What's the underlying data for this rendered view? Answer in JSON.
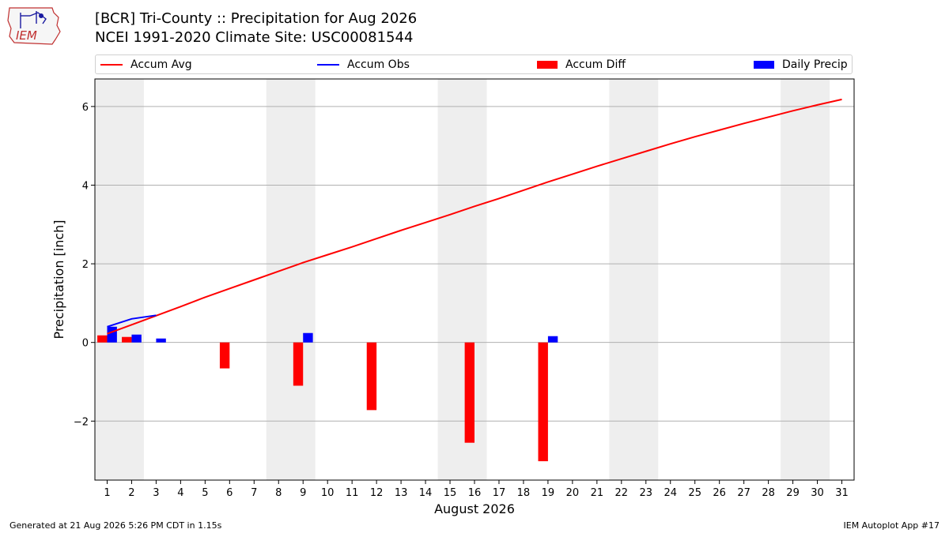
{
  "header": {
    "title_line1": "[BCR] Tri-County :: Precipitation for Aug 2026",
    "title_line2": "NCEI 1991-2020 Climate Site: USC00081544",
    "logo_text": "IEM"
  },
  "legend": {
    "accum_avg": "Accum Avg",
    "accum_obs": "Accum Obs",
    "accum_diff": "Accum Diff",
    "daily_precip": "Daily Precip"
  },
  "footer": {
    "left": "Generated at 21 Aug 2026 5:26 PM CDT in 1.15s",
    "right": "IEM Autoplot App #17"
  },
  "colors": {
    "avg": "#ff0000",
    "obs": "#0000ff",
    "diff": "#ff0000",
    "daily": "#0000ff",
    "shade": "#eeeeee",
    "grid": "#b0b0b0"
  },
  "chart_data": {
    "type": "bar",
    "title": "[BCR] Tri-County :: Precipitation for Aug 2026",
    "xlabel": "August 2026",
    "ylabel": "Precipitation [inch]",
    "xlim": [
      0.5,
      31.5
    ],
    "ylim": [
      -3.5,
      6.7
    ],
    "yticks": [
      -2,
      0,
      2,
      4,
      6
    ],
    "ytick_labels": [
      "−2",
      "0",
      "2",
      "4",
      "6"
    ],
    "x_ticks": [
      1,
      2,
      3,
      4,
      5,
      6,
      7,
      8,
      9,
      10,
      11,
      12,
      13,
      14,
      15,
      16,
      17,
      18,
      19,
      20,
      21,
      22,
      23,
      24,
      25,
      26,
      27,
      28,
      29,
      30,
      31
    ],
    "grid": "horizontal",
    "weekend_shading": [
      [
        0.5,
        2.5
      ],
      [
        7.5,
        9.5
      ],
      [
        14.5,
        16.5
      ],
      [
        21.5,
        23.5
      ],
      [
        28.5,
        30.5
      ]
    ],
    "series": [
      {
        "name": "Accum Avg",
        "kind": "line",
        "x": [
          1,
          2,
          3,
          4,
          5,
          6,
          7,
          8,
          9,
          10,
          11,
          12,
          13,
          14,
          15,
          16,
          17,
          18,
          19,
          20,
          21,
          22,
          23,
          24,
          25,
          26,
          27,
          28,
          29,
          30,
          31
        ],
        "values": [
          0.22,
          0.45,
          0.68,
          0.91,
          1.15,
          1.37,
          1.59,
          1.81,
          2.03,
          2.23,
          2.43,
          2.64,
          2.85,
          3.05,
          3.25,
          3.46,
          3.66,
          3.87,
          4.08,
          4.28,
          4.48,
          4.67,
          4.86,
          5.05,
          5.23,
          5.4,
          5.57,
          5.73,
          5.89,
          6.04,
          6.18
        ]
      },
      {
        "name": "Accum Obs",
        "kind": "line",
        "x": [
          1,
          2,
          3
        ],
        "values": [
          0.4,
          0.6,
          0.69
        ]
      },
      {
        "name": "Accum Diff",
        "kind": "bar",
        "x": [
          1,
          2,
          6,
          9,
          12,
          16,
          19
        ],
        "values": [
          0.18,
          0.14,
          -0.66,
          -1.1,
          -1.72,
          -2.55,
          -3.02
        ]
      },
      {
        "name": "Daily Precip",
        "kind": "bar",
        "x": [
          1,
          2,
          3,
          9,
          19
        ],
        "values": [
          0.4,
          0.2,
          0.1,
          0.24,
          0.16
        ]
      }
    ]
  }
}
